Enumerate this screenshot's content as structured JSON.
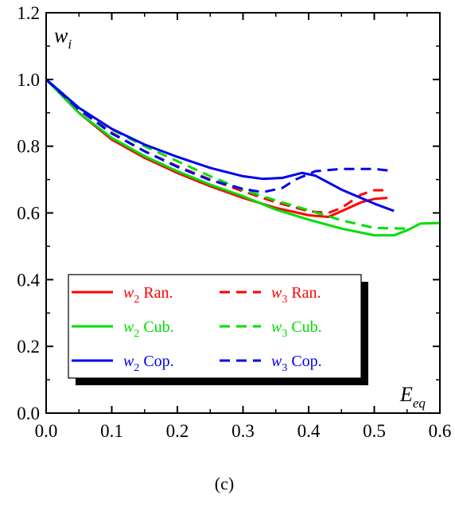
{
  "chart_data": {
    "type": "line",
    "caption": "(c)",
    "ylabel": {
      "base": "w",
      "sub": "i"
    },
    "xlabel": {
      "base": "E",
      "sub": "eq"
    },
    "xlim": [
      0.0,
      0.6
    ],
    "ylim": [
      0.0,
      1.2
    ],
    "xticks": [
      "0.0",
      "0.1",
      "0.2",
      "0.3",
      "0.4",
      "0.5",
      "0.6"
    ],
    "yticks": [
      "0.0",
      "0.2",
      "0.4",
      "0.6",
      "0.8",
      "1.0",
      "1.2"
    ],
    "grid": false,
    "legend_position": "lower-left",
    "series": [
      {
        "symbol": "w",
        "sub": "2",
        "name": "Ran.",
        "color": "#ff0000",
        "dash": "solid",
        "x": [
          0.0,
          0.05,
          0.1,
          0.15,
          0.2,
          0.25,
          0.3,
          0.35,
          0.4,
          0.43,
          0.45,
          0.48,
          0.5,
          0.52
        ],
        "y": [
          1.0,
          0.9,
          0.82,
          0.765,
          0.72,
          0.68,
          0.645,
          0.615,
          0.593,
          0.588,
          0.605,
          0.632,
          0.642,
          0.645
        ]
      },
      {
        "symbol": "w",
        "sub": "3",
        "name": "Ran.",
        "color": "#ff0000",
        "dash": "dashed",
        "x": [
          0.0,
          0.05,
          0.1,
          0.15,
          0.2,
          0.25,
          0.3,
          0.35,
          0.4,
          0.43,
          0.45,
          0.48,
          0.5,
          0.52
        ],
        "y": [
          1.0,
          0.91,
          0.84,
          0.785,
          0.74,
          0.7,
          0.665,
          0.632,
          0.605,
          0.6,
          0.615,
          0.655,
          0.668,
          0.668
        ]
      },
      {
        "symbol": "w",
        "sub": "2",
        "name": "Cub.",
        "color": "#00dd00",
        "dash": "solid",
        "x": [
          0.0,
          0.05,
          0.1,
          0.15,
          0.2,
          0.25,
          0.3,
          0.35,
          0.4,
          0.45,
          0.5,
          0.53,
          0.55,
          0.57,
          0.6
        ],
        "y": [
          1.0,
          0.9,
          0.825,
          0.77,
          0.725,
          0.685,
          0.65,
          0.61,
          0.58,
          0.553,
          0.533,
          0.533,
          0.548,
          0.568,
          0.57
        ]
      },
      {
        "symbol": "w",
        "sub": "3",
        "name": "Cub.",
        "color": "#00dd00",
        "dash": "dashed",
        "x": [
          0.0,
          0.05,
          0.1,
          0.15,
          0.2,
          0.25,
          0.3,
          0.35,
          0.4,
          0.45,
          0.5,
          0.55
        ],
        "y": [
          1.0,
          0.915,
          0.85,
          0.8,
          0.755,
          0.71,
          0.67,
          0.637,
          0.608,
          0.578,
          0.555,
          0.553
        ]
      },
      {
        "symbol": "w",
        "sub": "2",
        "name": "Cop.",
        "color": "#0000ee",
        "dash": "solid",
        "x": [
          0.0,
          0.05,
          0.1,
          0.15,
          0.2,
          0.25,
          0.3,
          0.33,
          0.36,
          0.39,
          0.41,
          0.45,
          0.5,
          0.53
        ],
        "y": [
          1.0,
          0.915,
          0.852,
          0.805,
          0.768,
          0.735,
          0.71,
          0.702,
          0.705,
          0.72,
          0.712,
          0.67,
          0.628,
          0.606
        ]
      },
      {
        "symbol": "w",
        "sub": "3",
        "name": "Cop.",
        "color": "#0000ee",
        "dash": "dashed",
        "x": [
          0.0,
          0.05,
          0.1,
          0.15,
          0.2,
          0.25,
          0.3,
          0.33,
          0.36,
          0.38,
          0.41,
          0.45,
          0.5,
          0.53
        ],
        "y": [
          1.0,
          0.91,
          0.838,
          0.785,
          0.738,
          0.698,
          0.672,
          0.662,
          0.675,
          0.7,
          0.725,
          0.732,
          0.732,
          0.725
        ]
      }
    ]
  }
}
